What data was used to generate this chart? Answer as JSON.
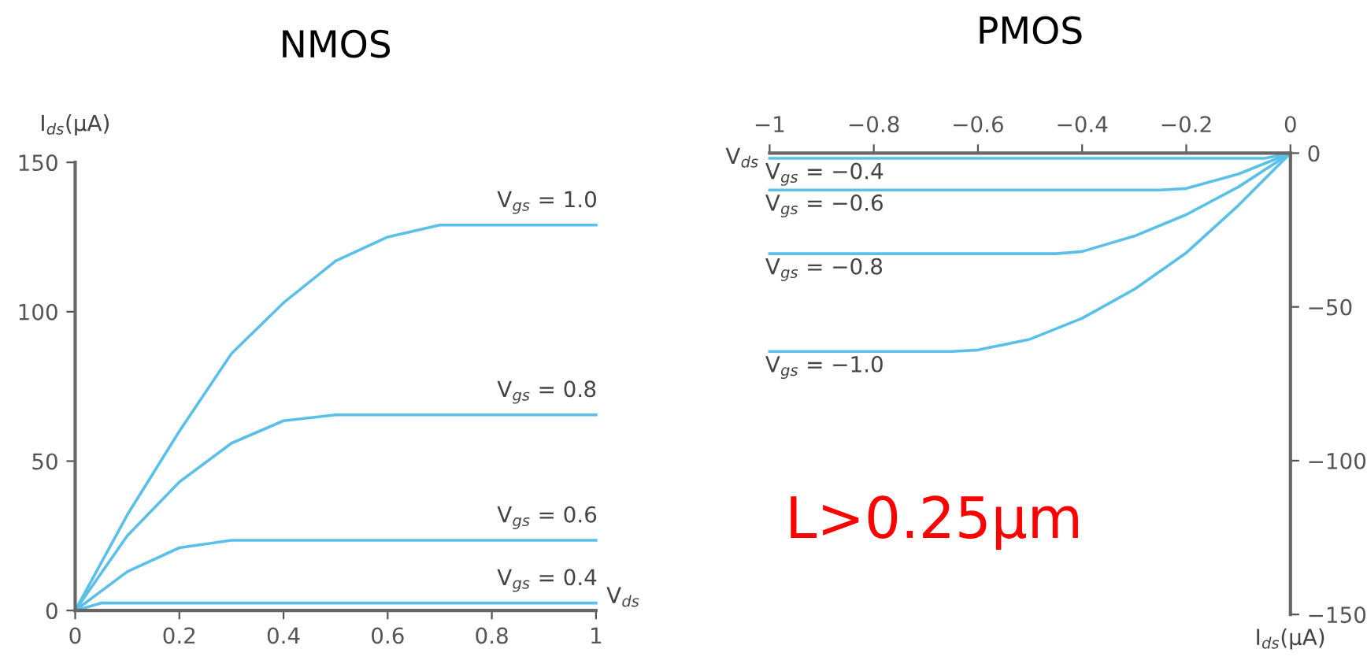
{
  "chart_data": [
    {
      "type": "line",
      "title": "NMOS",
      "xlabel": "V$_{ds}$",
      "ylabel": "I$_{ds}$(μA)",
      "xlim": [
        0,
        1
      ],
      "ylim": [
        0,
        150
      ],
      "xticks": [
        0,
        0.2,
        0.4,
        0.6,
        0.8,
        1
      ],
      "yticks": [
        0,
        50,
        100,
        150
      ],
      "grid": false,
      "legend": false,
      "marker": "none",
      "line_style": "solid",
      "series": [
        {
          "name": "V$_{gs}$ = 1.0",
          "color": "#5bc0e8",
          "x": [
            0,
            0.1,
            0.2,
            0.3,
            0.4,
            0.5,
            0.6,
            0.7,
            1.0
          ],
          "values": [
            0,
            32,
            60,
            86,
            103,
            117,
            125,
            129,
            129
          ]
        },
        {
          "name": "V$_{gs}$ = 0.8",
          "color": "#5bc0e8",
          "x": [
            0,
            0.1,
            0.2,
            0.3,
            0.4,
            0.5,
            1.0
          ],
          "values": [
            0,
            25,
            43,
            56,
            63.5,
            65.5,
            65.5
          ]
        },
        {
          "name": "V$_{gs}$ = 0.6",
          "color": "#5bc0e8",
          "x": [
            0,
            0.1,
            0.2,
            0.3,
            1.0
          ],
          "values": [
            0,
            13,
            21,
            23.5,
            23.5
          ]
        },
        {
          "name": "V$_{gs}$ = 0.4",
          "color": "#5bc0e8",
          "x": [
            0,
            0.05,
            1.0
          ],
          "values": [
            0,
            2.5,
            2.5
          ]
        }
      ]
    },
    {
      "type": "line",
      "title": "PMOS",
      "xlabel": "V$_{ds}$",
      "ylabel": "I$_{ds}$(μA)",
      "xlim": [
        -1,
        0
      ],
      "ylim": [
        -150,
        0
      ],
      "xticks": [
        {
          "value": -1,
          "label": "−1"
        },
        {
          "value": -0.8,
          "label": "−0.8"
        },
        {
          "value": -0.6,
          "label": "−0.6"
        },
        {
          "value": -0.4,
          "label": "−0.4"
        },
        {
          "value": -0.2,
          "label": "−0.2"
        },
        0
      ],
      "yticks": [
        {
          "value": -150,
          "label": "−150"
        },
        {
          "value": -100,
          "label": "−100"
        },
        {
          "value": -50,
          "label": "−50"
        },
        0
      ],
      "grid": false,
      "legend": false,
      "marker": "none",
      "line_style": "solid",
      "annotations": [
        "L>0.25μm"
      ],
      "series": [
        {
          "name": "V$_{gs}$ = −0.4",
          "color": "#5bc0e8",
          "x": [
            -1.0,
            -0.05,
            0
          ],
          "values": [
            -1.7,
            -1.7,
            0
          ]
        },
        {
          "name": "V$_{gs}$ = −0.6",
          "color": "#5bc0e8",
          "x": [
            -1.0,
            -0.25,
            -0.2,
            -0.1,
            0
          ],
          "values": [
            -12,
            -12,
            -11.5,
            -6.8,
            0
          ]
        },
        {
          "name": "V$_{gs}$ = −0.8",
          "color": "#5bc0e8",
          "x": [
            -1.0,
            -0.45,
            -0.4,
            -0.3,
            -0.2,
            -0.1,
            0
          ],
          "values": [
            -32.7,
            -32.7,
            -32,
            -27,
            -20,
            -11,
            0
          ]
        },
        {
          "name": "V$_{gs}$ = −1.0",
          "color": "#5bc0e8",
          "x": [
            -1.0,
            -0.65,
            -0.6,
            -0.5,
            -0.4,
            -0.3,
            -0.2,
            -0.1,
            0
          ],
          "values": [
            -64.5,
            -64.5,
            -64,
            -60.5,
            -53.7,
            -44.3,
            -32.4,
            -17,
            0
          ]
        }
      ]
    }
  ]
}
